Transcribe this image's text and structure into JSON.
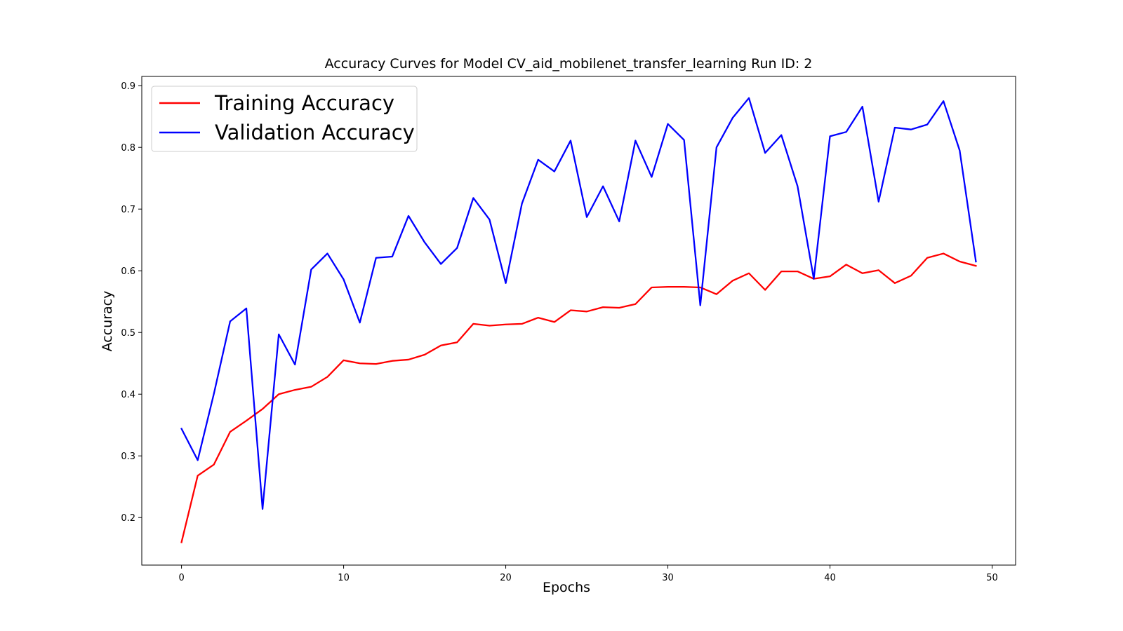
{
  "chart_data": {
    "type": "line",
    "title": "Accuracy Curves for Model CV_aid_mobilenet_transfer_learning Run ID: 2",
    "xlabel": "Epochs",
    "ylabel": "Accuracy",
    "xlim": [
      -2.45,
      51.45
    ],
    "ylim": [
      0.123,
      0.915
    ],
    "xticks": [
      0,
      10,
      20,
      30,
      40,
      50
    ],
    "yticks": [
      0.2,
      0.3,
      0.4,
      0.5,
      0.6,
      0.7,
      0.8,
      0.9
    ],
    "xtick_labels": [
      "0",
      "10",
      "20",
      "30",
      "40",
      "50"
    ],
    "ytick_labels": [
      "0.2",
      "0.3",
      "0.4",
      "0.5",
      "0.6",
      "0.7",
      "0.8",
      "0.9"
    ],
    "grid": false,
    "legend_position": "top-left",
    "x": [
      0,
      1,
      2,
      3,
      4,
      5,
      6,
      7,
      8,
      9,
      10,
      11,
      12,
      13,
      14,
      15,
      16,
      17,
      18,
      19,
      20,
      21,
      22,
      23,
      24,
      25,
      26,
      27,
      28,
      29,
      30,
      31,
      32,
      33,
      34,
      35,
      36,
      37,
      38,
      39,
      40,
      41,
      42,
      43,
      44,
      45,
      46,
      47,
      48,
      49
    ],
    "series": [
      {
        "name": "Training Accuracy",
        "color": "#ff0000",
        "values": [
          0.16,
          0.268,
          0.286,
          0.339,
          0.357,
          0.376,
          0.4,
          0.407,
          0.412,
          0.428,
          0.455,
          0.45,
          0.449,
          0.454,
          0.456,
          0.464,
          0.479,
          0.484,
          0.514,
          0.511,
          0.513,
          0.514,
          0.524,
          0.517,
          0.536,
          0.534,
          0.541,
          0.54,
          0.546,
          0.573,
          0.574,
          0.574,
          0.573,
          0.562,
          0.584,
          0.596,
          0.569,
          0.599,
          0.599,
          0.587,
          0.591,
          0.61,
          0.596,
          0.601,
          0.58,
          0.592,
          0.621,
          0.628,
          0.615,
          0.608
        ]
      },
      {
        "name": "Validation Accuracy",
        "color": "#0000ff",
        "values": [
          0.344,
          0.293,
          0.401,
          0.518,
          0.539,
          0.214,
          0.497,
          0.448,
          0.602,
          0.628,
          0.586,
          0.516,
          0.621,
          0.623,
          0.689,
          0.646,
          0.611,
          0.637,
          0.718,
          0.683,
          0.58,
          0.709,
          0.78,
          0.761,
          0.811,
          0.687,
          0.737,
          0.68,
          0.811,
          0.752,
          0.838,
          0.812,
          0.544,
          0.8,
          0.848,
          0.88,
          0.791,
          0.82,
          0.737,
          0.587,
          0.818,
          0.825,
          0.866,
          0.712,
          0.832,
          0.829,
          0.837,
          0.875,
          0.795,
          0.615
        ]
      }
    ]
  }
}
